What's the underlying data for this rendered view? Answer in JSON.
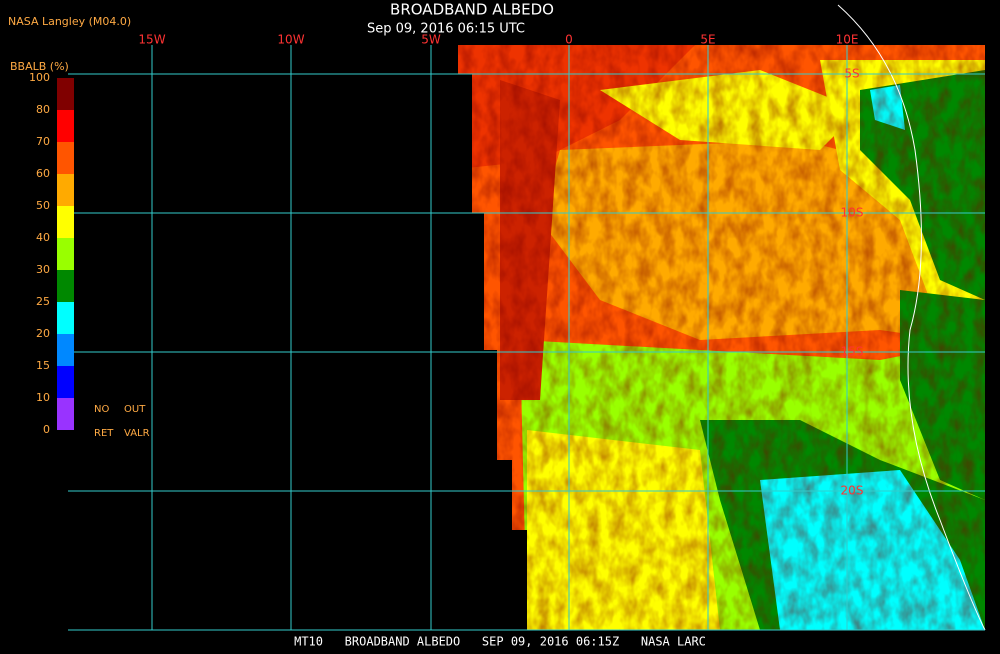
{
  "header": {
    "source": "NASA Langley (M04.0)",
    "title": "BROADBAND ALBEDO",
    "datetime": "Sep 09, 2016 06:15 UTC"
  },
  "legend": {
    "title": "BBALB (%)",
    "labels": [
      "100",
      "80",
      "70",
      "60",
      "50",
      "40",
      "30",
      "25",
      "20",
      "15",
      "10",
      "0"
    ],
    "colors": [
      "#800000",
      "#ff0000",
      "#ff5500",
      "#ffaa00",
      "#ffff00",
      "#99ff00",
      "#008800",
      "#00ffff",
      "#0088ff",
      "#0000ff",
      "#9933ff"
    ],
    "notes": [
      "NO",
      "OUT",
      "RET",
      "VALR"
    ]
  },
  "map": {
    "longitude_labels": [
      "15W",
      "10W",
      "5W",
      "0",
      "5E",
      "10E"
    ],
    "latitude_labels": [
      "5S",
      "10S",
      "15S",
      "20S"
    ]
  },
  "footer": "MT10   BROADBAND ALBEDO   SEP 09, 2016 06:15Z   NASA LARC"
}
